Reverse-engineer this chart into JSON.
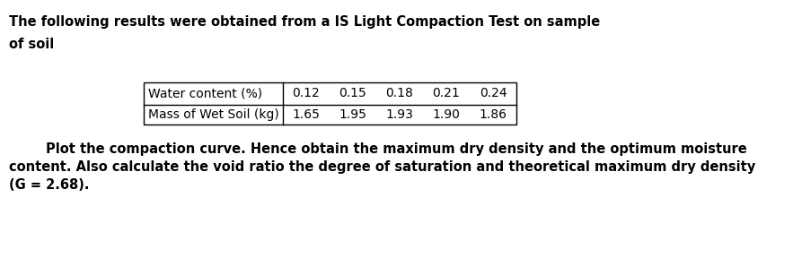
{
  "title_line1": "The following results were obtained from a IS Light Compaction Test on sample",
  "title_line2": "of soil",
  "table_header_label": "Water content (%)",
  "table_header_vals": [
    "0.12",
    "0.15",
    "0.18",
    "0.21",
    "0.24"
  ],
  "table_row_label": "Mass of Wet Soil (kg)",
  "table_row_vals": [
    "1.65",
    "1.95",
    "1.93",
    "1.90",
    "1.86"
  ],
  "para_line1": "        Plot the compaction curve. Hence obtain the maximum dry density and the optimum moisture",
  "para_line2": "content. Also calculate the void ratio the degree of saturation and theoretical maximum dry density",
  "para_line3": "(G = 2.68).",
  "bg_color": "#ffffff",
  "text_color": "#000000",
  "font_size_title": 10.5,
  "font_size_table": 10,
  "font_size_para": 10.5
}
